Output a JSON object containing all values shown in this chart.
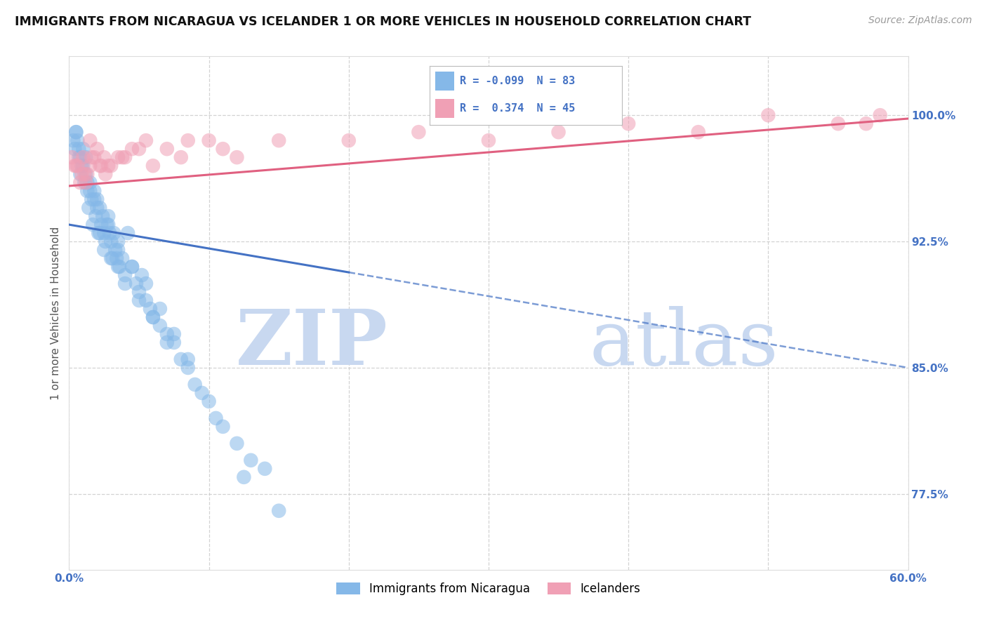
{
  "title": "IMMIGRANTS FROM NICARAGUA VS ICELANDER 1 OR MORE VEHICLES IN HOUSEHOLD CORRELATION CHART",
  "source": "Source: ZipAtlas.com",
  "ylabel": "1 or more Vehicles in Household",
  "ytick_values": [
    77.5,
    85.0,
    92.5,
    100.0
  ],
  "xlim": [
    0.0,
    60.0
  ],
  "ylim": [
    73.0,
    103.5
  ],
  "legend_blue_label": "Immigrants from Nicaragua",
  "legend_pink_label": "Icelanders",
  "R_blue": -0.099,
  "N_blue": 83,
  "R_pink": 0.374,
  "N_pink": 45,
  "blue_color": "#85B8E8",
  "pink_color": "#F0A0B5",
  "blue_line_color": "#4472C4",
  "pink_line_color": "#E06080",
  "blue_line_solid_end": 20,
  "watermark_zip": "ZIP",
  "watermark_atlas": "atlas",
  "watermark_color": "#C8D8F0",
  "background_color": "#FFFFFF",
  "grid_color": "#C8C8C8",
  "blue_scatter_x": [
    0.3,
    0.4,
    0.5,
    0.6,
    0.7,
    0.8,
    0.9,
    1.0,
    1.1,
    1.2,
    1.3,
    1.4,
    1.5,
    1.6,
    1.7,
    1.8,
    1.9,
    2.0,
    2.1,
    2.2,
    2.3,
    2.4,
    2.5,
    2.6,
    2.7,
    2.8,
    2.9,
    3.0,
    3.1,
    3.2,
    3.3,
    3.4,
    3.5,
    3.6,
    3.8,
    4.0,
    4.2,
    4.5,
    4.8,
    5.0,
    5.2,
    5.5,
    5.8,
    6.0,
    6.5,
    7.0,
    7.5,
    8.0,
    8.5,
    9.0,
    9.5,
    10.0,
    11.0,
    12.0,
    13.0,
    14.0,
    0.5,
    0.7,
    1.0,
    1.2,
    1.5,
    1.8,
    2.2,
    2.5,
    3.0,
    3.5,
    4.0,
    5.0,
    6.0,
    7.0,
    0.8,
    1.3,
    2.0,
    2.8,
    3.5,
    4.5,
    5.5,
    6.5,
    7.5,
    8.5,
    10.5,
    12.5,
    15.0
  ],
  "blue_scatter_y": [
    98.5,
    98.0,
    99.0,
    98.5,
    97.5,
    96.5,
    97.0,
    98.0,
    96.0,
    97.5,
    95.5,
    94.5,
    96.0,
    95.0,
    93.5,
    95.5,
    94.0,
    95.0,
    93.0,
    94.5,
    93.5,
    94.0,
    93.0,
    92.5,
    93.5,
    94.0,
    93.0,
    92.5,
    91.5,
    93.0,
    92.0,
    91.5,
    92.0,
    91.0,
    91.5,
    90.5,
    93.0,
    91.0,
    90.0,
    89.5,
    90.5,
    89.0,
    88.5,
    88.0,
    87.5,
    87.0,
    86.5,
    85.5,
    85.0,
    84.0,
    83.5,
    83.0,
    81.5,
    80.5,
    79.5,
    79.0,
    99.0,
    98.0,
    97.0,
    96.5,
    95.5,
    95.0,
    93.0,
    92.0,
    91.5,
    91.0,
    90.0,
    89.0,
    88.0,
    86.5,
    97.5,
    96.0,
    94.5,
    93.5,
    92.5,
    91.0,
    90.0,
    88.5,
    87.0,
    85.5,
    82.0,
    78.5,
    76.5
  ],
  "pink_scatter_x": [
    0.2,
    0.5,
    0.8,
    1.0,
    1.3,
    1.5,
    1.8,
    2.0,
    2.3,
    2.6,
    3.0,
    3.5,
    4.0,
    5.0,
    6.0,
    7.0,
    8.0,
    10.0,
    12.0,
    1.2,
    2.2,
    3.8,
    1.5,
    2.8,
    8.5,
    11.0,
    25.0,
    30.0,
    40.0,
    45.0,
    55.0,
    58.0,
    0.4,
    0.9,
    1.6,
    4.5,
    20.0,
    35.0,
    50.0,
    57.0,
    0.6,
    1.1,
    2.5,
    5.5,
    15.0
  ],
  "pink_scatter_y": [
    97.5,
    97.0,
    96.0,
    97.5,
    96.5,
    97.0,
    97.5,
    98.0,
    97.0,
    96.5,
    97.0,
    97.5,
    97.5,
    98.0,
    97.0,
    98.0,
    97.5,
    98.5,
    97.5,
    96.0,
    97.0,
    97.5,
    98.5,
    97.0,
    98.5,
    98.0,
    99.0,
    98.5,
    99.5,
    99.0,
    99.5,
    100.0,
    97.0,
    96.5,
    97.5,
    98.0,
    98.5,
    99.0,
    100.0,
    99.5,
    97.0,
    96.5,
    97.5,
    98.5,
    98.5
  ],
  "blue_trendline_x": [
    0,
    60
  ],
  "blue_trendline_y": [
    93.5,
    85.0
  ],
  "pink_trendline_x": [
    0,
    60
  ],
  "pink_trendline_y": [
    95.8,
    99.8
  ]
}
